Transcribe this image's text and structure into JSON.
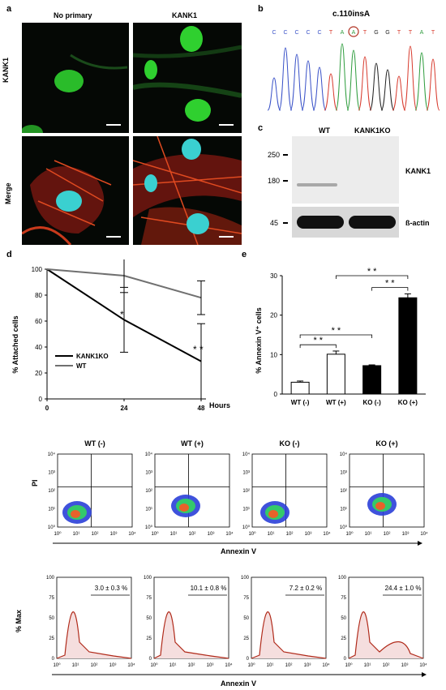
{
  "panel_labels": {
    "a": "a",
    "b": "b",
    "c": "c",
    "d": "d",
    "e": "e"
  },
  "micrograph": {
    "col_headers": [
      "No primary",
      "KANK1"
    ],
    "row_labels": [
      "KANK1",
      "Merge"
    ]
  },
  "sequencing": {
    "title": "c.110insA",
    "bases": [
      "C",
      "C",
      "C",
      "C",
      "C",
      "T",
      "A",
      "A",
      "T",
      "G",
      "G",
      "T",
      "T",
      "A",
      "T"
    ],
    "highlight_index": 7,
    "colors": {
      "C": "#3a52c8",
      "T": "#d83b2e",
      "A": "#2f9d3e",
      "G": "#222222"
    }
  },
  "western": {
    "lanes": [
      "WT",
      "KANK1KO"
    ],
    "markers": [
      "250",
      "180",
      "45"
    ],
    "bands": [
      "KANK1",
      "ß-actin"
    ]
  },
  "chart_data": [
    {
      "type": "line",
      "x": [
        0,
        24,
        48
      ],
      "xlabel": "Hours",
      "ylabel": "% Attached cells",
      "xlim": [
        0,
        48
      ],
      "ylim": [
        0,
        100
      ],
      "yticks": [
        "0",
        "20",
        "40",
        "60",
        "80",
        "100"
      ],
      "xticks": [
        "0",
        "24",
        "48"
      ],
      "series": [
        {
          "name": "KANK1KO",
          "values": [
            100,
            61,
            29
          ],
          "err": [
            0,
            25,
            29
          ],
          "color": "#000000"
        },
        {
          "name": "WT",
          "values": [
            100,
            95,
            78
          ],
          "err": [
            0,
            13,
            13
          ],
          "color": "#707070"
        }
      ],
      "annotations": [
        "*",
        "* *"
      ],
      "legend": "bottom-left"
    },
    {
      "type": "bar",
      "categories": [
        "WT (-)",
        "WT (+)",
        "KO (-)",
        "KO (+)"
      ],
      "values": [
        3.0,
        10.1,
        7.2,
        24.4
      ],
      "err": [
        0.3,
        0.8,
        0.2,
        1.0
      ],
      "fill": [
        "#ffffff",
        "#ffffff",
        "#000000",
        "#000000"
      ],
      "ylabel": "% Annexin V⁺ cells",
      "ylim": [
        0,
        30
      ],
      "yticks": [
        "0",
        "10",
        "20",
        "30"
      ],
      "significance": [
        "* *",
        "* *",
        "* *",
        "* *"
      ]
    },
    {
      "type": "scatter",
      "facets": [
        "WT (-)",
        "WT (+)",
        "KO (-)",
        "KO (+)"
      ],
      "xlabel": "Annexin V",
      "ylabel": "PI",
      "tick_labels": [
        "10⁰",
        "10¹",
        "10²",
        "10³",
        "10⁴"
      ]
    },
    {
      "type": "area",
      "facets": [
        "3.0 ± 0.3 %",
        "10.1 ± 0.8 %",
        "7.2 ± 0.2 %",
        "24.4 ± 1.0 %"
      ],
      "xlabel": "Annexin V",
      "ylabel": "% Max",
      "yticks": [
        "0",
        "25",
        "50",
        "75",
        "100"
      ],
      "tick_labels": [
        "10⁰",
        "10¹",
        "10²",
        "10³",
        "10⁴"
      ]
    }
  ]
}
